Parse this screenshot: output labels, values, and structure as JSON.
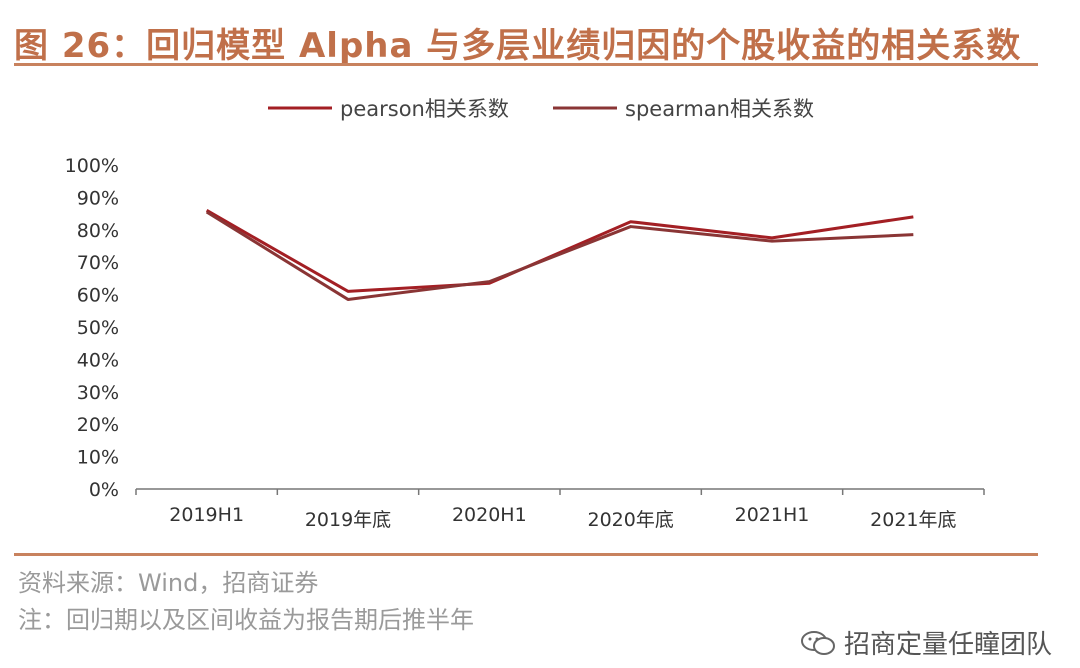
{
  "title": "图 26：回归模型 Alpha 与多层业绩归因的个股收益的相关系数",
  "source": "资料来源：Wind，招商证券",
  "note": "注：回归期以及区间收益为报告期后推半年",
  "watermark": "招商定量任瞳团队",
  "chart_data": {
    "type": "line",
    "categories": [
      "2019H1",
      "2019年底",
      "2020H1",
      "2020年底",
      "2021H1",
      "2021年底"
    ],
    "series": [
      {
        "name": "pearson相关系数",
        "values": [
          86,
          61,
          63.5,
          82.5,
          77.5,
          84
        ],
        "color": "#a31f24"
      },
      {
        "name": "spearman相关系数",
        "values": [
          85.5,
          58.5,
          64,
          81,
          76.5,
          78.5
        ],
        "color": "#8a3535"
      }
    ],
    "yticks": [
      "0%",
      "10%",
      "20%",
      "30%",
      "40%",
      "50%",
      "60%",
      "70%",
      "80%",
      "90%",
      "100%"
    ],
    "ylim": [
      0,
      100
    ],
    "legend_position": "top",
    "grid": false
  }
}
